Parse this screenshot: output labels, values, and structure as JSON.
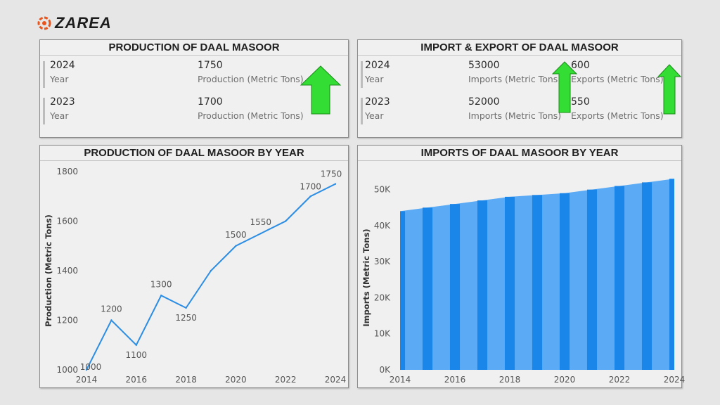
{
  "brand": {
    "name": "ZAREA",
    "accent": "#e8541b"
  },
  "production_card": {
    "title": "PRODUCTION OF DAAL MASOOR",
    "rows": [
      {
        "year": "2024",
        "year_label": "Year",
        "value": "1750",
        "value_label": "Production (Metric Tons)"
      },
      {
        "year": "2023",
        "year_label": "Year",
        "value": "1700",
        "value_label": "Production (Metric Tons)"
      }
    ],
    "trend": "up-arrow-icon",
    "arrow_color": "#33dd33"
  },
  "trade_card": {
    "title": "IMPORT & EXPORT OF DAAL MASOOR",
    "rows": [
      {
        "year": "2024",
        "year_label": "Year",
        "imports": "53000",
        "imports_label": "Imports (Metric Tons)",
        "exports": "600",
        "exports_label": "Exports (Metric Tons)"
      },
      {
        "year": "2023",
        "year_label": "Year",
        "imports": "52000",
        "imports_label": "Imports (Metric Tons)",
        "exports": "550",
        "exports_label": "Exports (Metric Tons)"
      }
    ],
    "trend": "up-arrow-icon",
    "arrow_color": "#33dd33"
  },
  "chart_data": [
    {
      "type": "line",
      "title": "PRODUCTION OF DAAL MASOOR BY YEAR",
      "xlabel": "",
      "ylabel": "Production (Metric Tons)",
      "x": [
        2014,
        2015,
        2016,
        2017,
        2018,
        2019,
        2020,
        2021,
        2022,
        2023,
        2024
      ],
      "values": [
        1000,
        1200,
        1100,
        1300,
        1250,
        1400,
        1500,
        1550,
        1600,
        1700,
        1750
      ],
      "data_labels": [
        "1000",
        "1200",
        "1100",
        "1300",
        "1250",
        "",
        "1500",
        "1550",
        "",
        "1700",
        "1750"
      ],
      "xticks": [
        "2014",
        "2016",
        "2018",
        "2020",
        "2022",
        "2024"
      ],
      "yticks": [
        "1000",
        "1200",
        "1400",
        "1600",
        "1800"
      ],
      "ylim": [
        1000,
        1800
      ],
      "grid": false,
      "color": "#2b8de3"
    },
    {
      "type": "area",
      "title": "IMPORTS OF DAAL MASOOR BY YEAR",
      "xlabel": "",
      "ylabel": "Imports (Metric Tons)",
      "x": [
        2014,
        2015,
        2016,
        2017,
        2018,
        2019,
        2020,
        2021,
        2022,
        2023,
        2024
      ],
      "values": [
        44000,
        45000,
        46000,
        47000,
        48000,
        48500,
        49000,
        50000,
        51000,
        52000,
        53000
      ],
      "xticks": [
        "2014",
        "2016",
        "2018",
        "2020",
        "2022",
        "2024"
      ],
      "yticks": [
        "0K",
        "10K",
        "20K",
        "30K",
        "40K",
        "50K"
      ],
      "ylim": [
        0,
        55000
      ],
      "grid": false,
      "color_light": "#5aaaf5",
      "color_dark": "#1a86ea"
    }
  ]
}
